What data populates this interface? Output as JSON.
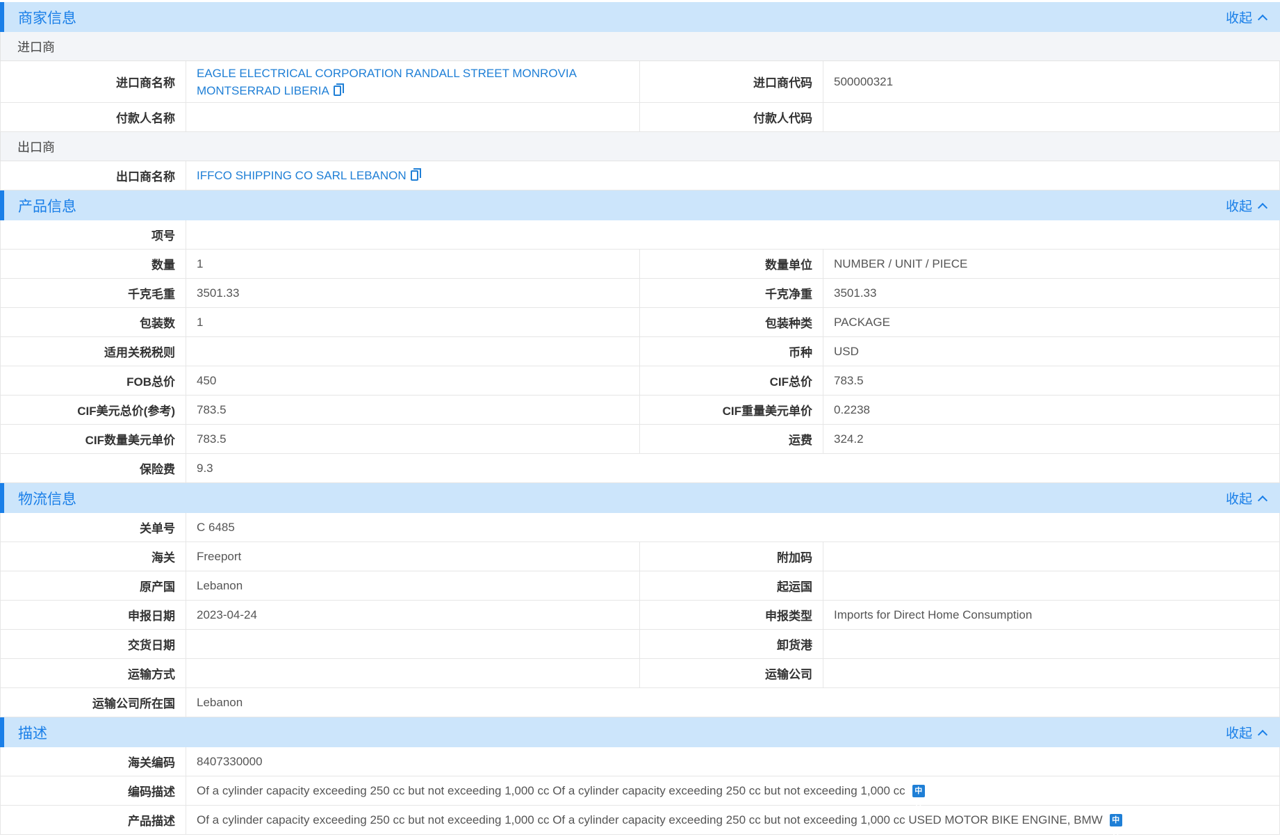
{
  "collapse_label": "收起",
  "merchant": {
    "title": "商家信息",
    "importer_sub": "进口商",
    "importer_name_label": "进口商名称",
    "importer_name": "EAGLE ELECTRICAL CORPORATION RANDALL STREET MONROVIA MONTSERRAD LIBERIA",
    "importer_code_label": "进口商代码",
    "importer_code": "500000321",
    "payer_name_label": "付款人名称",
    "payer_name": "",
    "payer_code_label": "付款人代码",
    "payer_code": "",
    "exporter_sub": "出口商",
    "exporter_name_label": "出口商名称",
    "exporter_name": "IFFCO SHIPPING CO SARL LEBANON"
  },
  "product": {
    "title": "产品信息",
    "rows": [
      {
        "l1": "项号",
        "v1": ""
      },
      {
        "l1": "数量",
        "v1": "1",
        "l2": "数量单位",
        "v2": "NUMBER / UNIT / PIECE"
      },
      {
        "l1": "千克毛重",
        "v1": "3501.33",
        "l2": "千克净重",
        "v2": "3501.33"
      },
      {
        "l1": "包装数",
        "v1": "1",
        "l2": "包装种类",
        "v2": "PACKAGE"
      },
      {
        "l1": "适用关税税则",
        "v1": "",
        "l2": "币种",
        "v2": "USD"
      },
      {
        "l1": "FOB总价",
        "v1": "450",
        "l2": "CIF总价",
        "v2": "783.5"
      },
      {
        "l1": "CIF美元总价(参考)",
        "v1": "783.5",
        "l2": "CIF重量美元单价",
        "v2": "0.2238"
      },
      {
        "l1": "CIF数量美元单价",
        "v1": "783.5",
        "l2": "运费",
        "v2": "324.2"
      },
      {
        "l1": "保险费",
        "v1": "9.3"
      }
    ]
  },
  "logistics": {
    "title": "物流信息",
    "rows": [
      {
        "l1": "关单号",
        "v1": "C 6485"
      },
      {
        "l1": "海关",
        "v1": "Freeport",
        "l2": "附加码",
        "v2": ""
      },
      {
        "l1": "原产国",
        "v1": "Lebanon",
        "l2": "起运国",
        "v2": ""
      },
      {
        "l1": "申报日期",
        "v1": "2023-04-24",
        "l2": "申报类型",
        "v2": "Imports for Direct Home Consumption"
      },
      {
        "l1": "交货日期",
        "v1": "",
        "l2": "卸货港",
        "v2": ""
      },
      {
        "l1": "运输方式",
        "v1": "",
        "l2": "运输公司",
        "v2": ""
      },
      {
        "l1": "运输公司所在国",
        "v1": "Lebanon"
      }
    ]
  },
  "description": {
    "title": "描述",
    "hs_code_label": "海关编码",
    "hs_code": "8407330000",
    "code_desc_label": "编码描述",
    "code_desc": "Of a cylinder capacity exceeding 250 cc but not exceeding 1,000 cc Of a cylinder capacity exceeding 250 cc but not exceeding 1,000 cc",
    "product_desc_label": "产品描述",
    "product_desc": "Of a cylinder capacity exceeding 250 cc but not exceeding 1,000 cc Of a cylinder capacity exceeding 250 cc but not exceeding 1,000 cc USED MOTOR BIKE ENGINE, BMW",
    "translate_glyph": "中A"
  },
  "colors": {
    "accent": "#1a7fe8",
    "header_bg": "#cce5fb",
    "link": "#1f7fd6"
  }
}
